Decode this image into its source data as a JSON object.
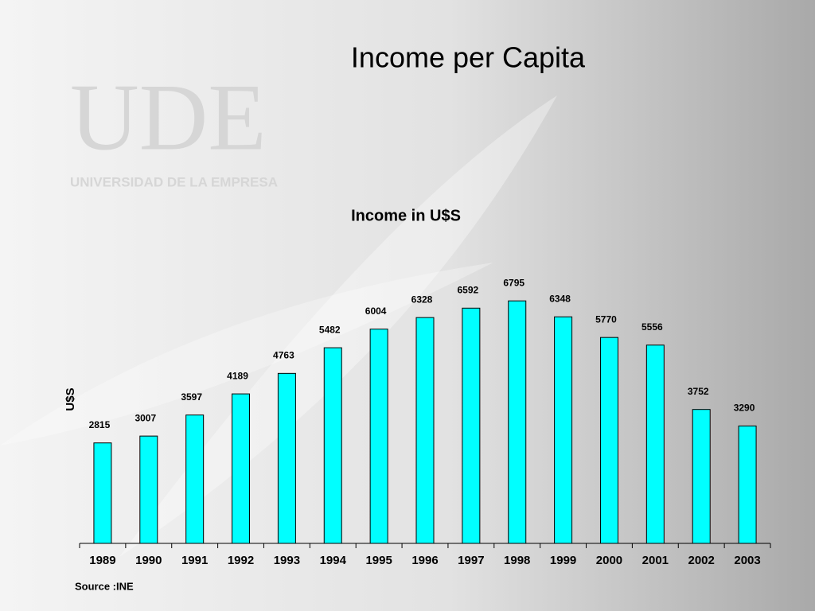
{
  "slide": {
    "title": "Income per Capita",
    "logo": "UDE",
    "logo_caption": "UNIVERSIDAD DE LA EMPRESA"
  },
  "chart_data": {
    "type": "bar",
    "title": "Income in U$S",
    "y_label": "U$S",
    "source": "Source :INE",
    "categories": [
      "1989",
      "1990",
      "1991",
      "1992",
      "1993",
      "1994",
      "1995",
      "1996",
      "1997",
      "1998",
      "1999",
      "2000",
      "2001",
      "2002",
      "2003"
    ],
    "values": [
      2815,
      3007,
      3597,
      4189,
      4763,
      5482,
      6004,
      6328,
      6592,
      6795,
      6348,
      5770,
      5556,
      3752,
      3290
    ],
    "color": "#00ffff",
    "ylim": [
      0,
      7000
    ]
  }
}
